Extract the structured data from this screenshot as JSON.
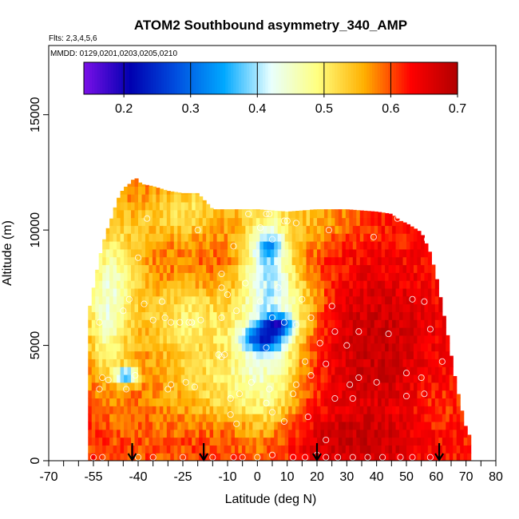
{
  "chart_data": {
    "type": "heatmap",
    "title": "ATOM2 Southbound asymmetry_340_AMP",
    "subtitle_flights": "Flts: 2,3,4,5,6",
    "subtitle_dates": "MMDD: 0129,0201,0203,0205,0210",
    "xlabel": "Latitude (deg N)",
    "ylabel": "Altitude (m)",
    "xlim": [
      -70,
      80
    ],
    "ylim": [
      0,
      18000
    ],
    "x_ticks": [
      -70,
      -55,
      -40,
      -25,
      -10,
      0,
      10,
      20,
      30,
      40,
      50,
      60,
      70,
      80
    ],
    "x_tick_labels": [
      "-70",
      "-55",
      "-40",
      "-25",
      "-10",
      "0",
      "10",
      "20",
      "30",
      "40",
      "50",
      "60",
      "70",
      "80"
    ],
    "x_minor_ticks": [
      -65,
      -60,
      -50,
      -45,
      -35,
      -30,
      -20,
      -15,
      -5,
      5,
      15,
      25,
      35,
      45,
      55,
      65,
      75
    ],
    "y_ticks": [
      0,
      5000,
      10000,
      15000
    ],
    "y_tick_labels": [
      "0",
      "5000",
      "10000",
      "15000"
    ],
    "colorbar": {
      "range": [
        0.14,
        0.7
      ],
      "ticks": [
        0.2,
        0.3,
        0.4,
        0.5,
        0.6,
        0.7
      ],
      "tick_labels": [
        "0.2",
        "0.3",
        "0.4",
        "0.5",
        "0.6",
        "0.7"
      ],
      "colors": [
        "#7a10e8",
        "#0000b0",
        "#0050e0",
        "#00a8ff",
        "#e8ffff",
        "#ffff80",
        "#ffb000",
        "#ff0000",
        "#b00000"
      ]
    },
    "envelope": {
      "description": "altitude extent per latitude",
      "lat": [
        -57,
        -55,
        -53,
        -51,
        -49,
        -47,
        -45,
        -43,
        -41,
        -39,
        -35,
        -30,
        -25,
        -20,
        -15,
        -10,
        0,
        10,
        20,
        30,
        40,
        45,
        48,
        50,
        55,
        58,
        60,
        62,
        64,
        66,
        68,
        70,
        72
      ],
      "top_m": [
        6200,
        7500,
        8800,
        9800,
        10500,
        11300,
        11800,
        12000,
        12300,
        12000,
        11900,
        11700,
        11600,
        11600,
        10900,
        10900,
        10900,
        10800,
        10900,
        10900,
        10800,
        10700,
        10400,
        10300,
        9900,
        9000,
        8000,
        6700,
        5300,
        3800,
        2500,
        1400,
        850
      ]
    },
    "field_value_range": [
      0.18,
      0.7
    ],
    "flight_arrows_lat": [
      -42,
      -18,
      20,
      61
    ],
    "observation_points": [
      [
        -55,
        150
      ],
      [
        -52,
        150
      ],
      [
        -40,
        150
      ],
      [
        -35,
        150
      ],
      [
        -25,
        150
      ],
      [
        -15,
        150
      ],
      [
        -8,
        150
      ],
      [
        -5,
        150
      ],
      [
        0,
        150
      ],
      [
        5,
        250
      ],
      [
        12,
        150
      ],
      [
        16,
        150
      ],
      [
        20,
        250
      ],
      [
        23,
        150
      ],
      [
        27,
        150
      ],
      [
        32,
        150
      ],
      [
        37,
        150
      ],
      [
        42,
        150
      ],
      [
        48,
        150
      ],
      [
        52,
        150
      ],
      [
        58,
        150
      ],
      [
        -52,
        3600
      ],
      [
        -50,
        3500
      ],
      [
        -44,
        3100
      ],
      [
        -41,
        3700
      ],
      [
        -30,
        3100
      ],
      [
        -24,
        3400
      ],
      [
        -21,
        3200
      ],
      [
        -2,
        3400
      ],
      [
        4,
        3100
      ],
      [
        13,
        3300
      ],
      [
        18,
        3700
      ],
      [
        31,
        3300
      ],
      [
        34,
        3600
      ],
      [
        40,
        3400
      ],
      [
        50,
        3800
      ],
      [
        55,
        3600
      ],
      [
        -53,
        3100
      ],
      [
        -29,
        3300
      ],
      [
        -9,
        2700
      ],
      [
        -6,
        2900
      ],
      [
        3,
        2500
      ],
      [
        12,
        2900
      ],
      [
        26,
        2700
      ],
      [
        32,
        2700
      ],
      [
        50,
        2800
      ],
      [
        56,
        2900
      ],
      [
        -7,
        1600
      ],
      [
        -9,
        2000
      ],
      [
        5,
        2100
      ],
      [
        9,
        1700
      ],
      [
        17,
        1900
      ],
      [
        23,
        900
      ],
      [
        -53,
        6000
      ],
      [
        -45,
        6500
      ],
      [
        -43,
        7000
      ],
      [
        -38,
        6800
      ],
      [
        -35,
        6100
      ],
      [
        -31,
        6200
      ],
      [
        -29,
        6000
      ],
      [
        -23,
        6000
      ],
      [
        -19,
        6100
      ],
      [
        -12,
        6200
      ],
      [
        -10,
        7200
      ],
      [
        -7,
        6500
      ],
      [
        1,
        6900
      ],
      [
        5,
        6200
      ],
      [
        9,
        6000
      ],
      [
        15,
        7000
      ],
      [
        18,
        6200
      ],
      [
        21,
        5100
      ],
      [
        23,
        4200
      ],
      [
        26,
        5600
      ],
      [
        30,
        5000
      ],
      [
        34,
        5600
      ],
      [
        44,
        5500
      ],
      [
        52,
        7000
      ],
      [
        56,
        6900
      ],
      [
        58,
        5700
      ],
      [
        -13,
        4600
      ],
      [
        -12,
        4500
      ],
      [
        -11,
        4600
      ],
      [
        3,
        4900
      ],
      [
        13,
        5900
      ],
      [
        16,
        4300
      ],
      [
        25,
        6700
      ],
      [
        62,
        4300
      ],
      [
        -40,
        8800
      ],
      [
        -12,
        8100
      ],
      [
        -12,
        7500
      ],
      [
        -4,
        7700
      ],
      [
        7,
        7500
      ],
      [
        -52,
        11800
      ],
      [
        -54,
        10400
      ],
      [
        -37,
        10500
      ],
      [
        -20,
        10000
      ],
      [
        -3,
        10700
      ],
      [
        3,
        10700
      ],
      [
        4,
        10700
      ],
      [
        9,
        10400
      ],
      [
        10,
        10400
      ],
      [
        13,
        10300
      ],
      [
        24,
        10000
      ],
      [
        39,
        9700
      ],
      [
        47,
        10500
      ],
      [
        53,
        10300
      ],
      [
        57,
        9600
      ],
      [
        -32,
        6900
      ],
      [
        -26,
        6000
      ],
      [
        -22,
        6000
      ],
      [
        -8,
        9300
      ],
      [
        1,
        10100
      ],
      [
        5,
        9600
      ]
    ]
  }
}
